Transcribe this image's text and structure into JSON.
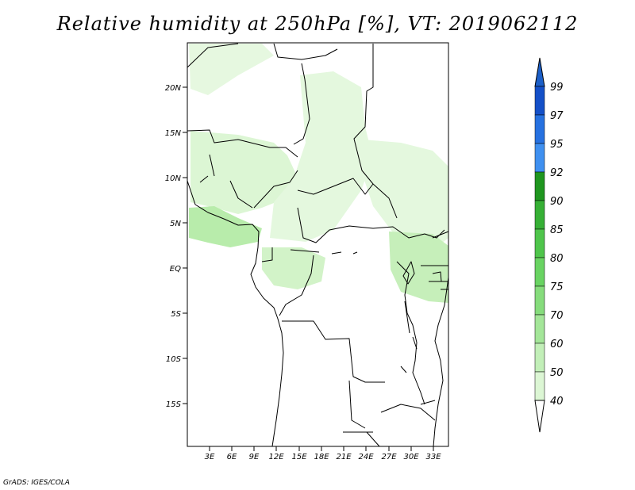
{
  "map": {
    "title": "Relative humidity at 250hPa [%], VT: 2019062112",
    "credit": "GrADS: IGES/COLA",
    "lat_labels": [
      "20N",
      "15N",
      "10N",
      "5N",
      "EQ",
      "5S",
      "10S",
      "15S"
    ],
    "lon_labels": [
      "3E",
      "6E",
      "9E",
      "12E",
      "15E",
      "18E",
      "21E",
      "24E",
      "27E",
      "30E",
      "33E"
    ],
    "colorbar": {
      "labels": [
        "40",
        "50",
        "60",
        "70",
        "75",
        "80",
        "85",
        "90",
        "92",
        "95",
        "97",
        "99"
      ],
      "colors": [
        "#eefbea",
        "#dcf6d4",
        "#c2efb8",
        "#a4e699",
        "#86dc7c",
        "#69d362",
        "#4fc54b",
        "#36b035",
        "#1f961f",
        "#3f90f0",
        "#2671e0",
        "#1450c8"
      ],
      "top_color": "#1c5fc8",
      "bottom_color": "#ffffff"
    }
  }
}
